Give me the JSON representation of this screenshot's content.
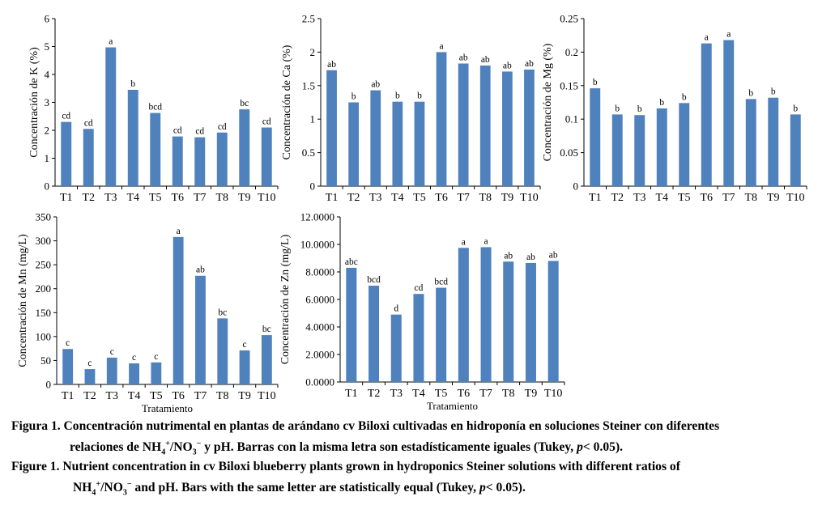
{
  "colors": {
    "bar": "#4f81bd",
    "axis": "#000000"
  },
  "chart_data": [
    {
      "type": "bar",
      "ylabel": "Concentración de K (%)",
      "xlabel": "",
      "categories": [
        "T1",
        "T2",
        "T3",
        "T4",
        "T5",
        "T6",
        "T7",
        "T8",
        "T9",
        "T10"
      ],
      "values": [
        2.3,
        2.05,
        4.97,
        3.45,
        2.62,
        1.78,
        1.75,
        1.92,
        2.75,
        2.1
      ],
      "letters": [
        "cd",
        "cd",
        "a",
        "b",
        "bcd",
        "cd",
        "cd",
        "cd",
        "bc",
        "cd"
      ],
      "ylim": [
        0,
        6
      ],
      "ticks": [
        "0",
        "1",
        "2",
        "3",
        "4",
        "5",
        "6"
      ],
      "grid": false
    },
    {
      "type": "bar",
      "ylabel": "Concentración de Ca (%)",
      "xlabel": "",
      "categories": [
        "T1",
        "T2",
        "T3",
        "T4",
        "T5",
        "T6",
        "T7",
        "T8",
        "T9",
        "T10"
      ],
      "values": [
        1.73,
        1.25,
        1.43,
        1.26,
        1.26,
        2.0,
        1.83,
        1.8,
        1.71,
        1.74
      ],
      "letters": [
        "ab",
        "b",
        "ab",
        "b",
        "b",
        "a",
        "ab",
        "ab",
        "ab",
        "ab"
      ],
      "ylim": [
        0,
        2.5
      ],
      "ticks": [
        "0",
        "0.5",
        "1",
        "1.5",
        "2",
        "2.5"
      ],
      "grid": false
    },
    {
      "type": "bar",
      "ylabel": "Concentración de Mg (%)",
      "xlabel": "",
      "categories": [
        "T1",
        "T2",
        "T3",
        "T4",
        "T5",
        "T6",
        "T7",
        "T8",
        "T9",
        "T10"
      ],
      "values": [
        0.146,
        0.107,
        0.106,
        0.116,
        0.124,
        0.213,
        0.218,
        0.13,
        0.132,
        0.107
      ],
      "letters": [
        "b",
        "b",
        "b",
        "b",
        "b",
        "a",
        "a",
        "b",
        "b",
        "b"
      ],
      "ylim": [
        0,
        0.25
      ],
      "ticks": [
        "0",
        "0.05",
        "0.1",
        "0.15",
        "0.2",
        "0.25"
      ],
      "grid": false
    },
    {
      "type": "bar",
      "ylabel": "Concentración de Mn (mg/L)",
      "xlabel": "Tratamiento",
      "categories": [
        "T1",
        "T2",
        "T3",
        "T4",
        "T5",
        "T6",
        "T7",
        "T8",
        "T9",
        "T10"
      ],
      "values": [
        74,
        32,
        56,
        44,
        46,
        308,
        227,
        138,
        71,
        103
      ],
      "letters": [
        "c",
        "c",
        "c",
        "c",
        "c",
        "a",
        "ab",
        "bc",
        "c",
        "bc"
      ],
      "ylim": [
        0,
        350
      ],
      "ticks": [
        "0",
        "50",
        "100",
        "150",
        "200",
        "250",
        "300",
        "350"
      ],
      "grid": false
    },
    {
      "type": "bar",
      "ylabel": "Concentración de Zn (mg/L)",
      "xlabel": "Tratamiento",
      "categories": [
        "T1",
        "T2",
        "T3",
        "T4",
        "T5",
        "T6",
        "T7",
        "T8",
        "T9",
        "T10"
      ],
      "values": [
        8.3,
        7.0,
        4.9,
        6.4,
        6.85,
        9.75,
        9.8,
        8.75,
        8.65,
        8.8
      ],
      "letters": [
        "abc",
        "bcd",
        "d",
        "cd",
        "bcd",
        "a",
        "a",
        "ab",
        "ab",
        "ab"
      ],
      "ylim": [
        0,
        12
      ],
      "ticks": [
        "0.0000",
        "2.0000",
        "4.0000",
        "6.0000",
        "8.0000",
        "10.0000",
        "12.0000"
      ],
      "grid": false
    }
  ],
  "caption": {
    "es_label": "Figura 1.",
    "es_line1": "Concentración nutrimental en plantas de arándano cv Biloxi cultivadas en hidroponía en soluciones Steiner con diferentes",
    "es_line2_a": "relaciones de NH",
    "es_line2_b": "/NO",
    "es_line2_c": " y pH. Barras con la misma letra son estadísticamente iguales (Tukey, ",
    "es_line2_p": "p",
    "es_line2_d": "< 0.05).",
    "en_label": "Figure 1.",
    "en_line1": "Nutrient concentration in cv Biloxi blueberry plants grown in hydroponics Steiner solutions with different ratios of",
    "en_line2_a": "NH",
    "en_line2_b": "/NO",
    "en_line2_c": " and pH. Bars with the same letter are statistically equal (Tukey, ",
    "en_line2_p": "p",
    "en_line2_d": "< 0.05).",
    "sub4": "4",
    "sup_plus": "+",
    "sub3": "3",
    "sup_minus": "−"
  }
}
